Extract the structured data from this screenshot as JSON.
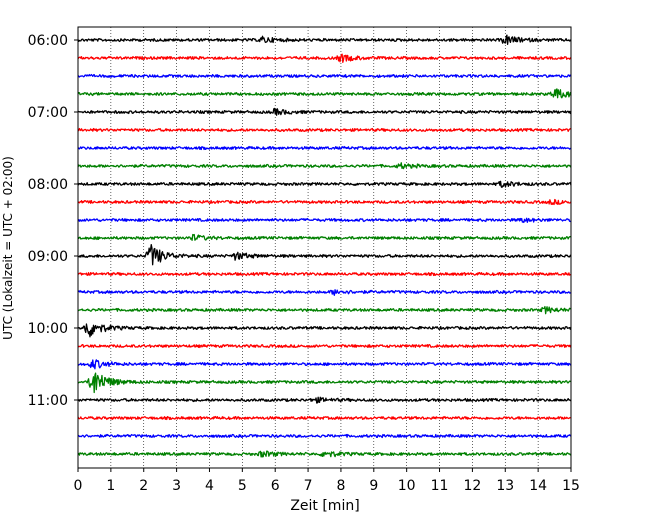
{
  "chart_data": {
    "type": "line",
    "xlabel": "Zeit  [min]",
    "ylabel": "UTC (Lokalzeit = UTC + 02:00)",
    "xlim": [
      0,
      15
    ],
    "x_ticks": [
      "0",
      "1",
      "2",
      "3",
      "4",
      "5",
      "6",
      "7",
      "8",
      "9",
      "10",
      "11",
      "12",
      "13",
      "14",
      "15"
    ],
    "y_ticks": [
      {
        "row": 0,
        "label": "06:00"
      },
      {
        "row": 4,
        "label": "07:00"
      },
      {
        "row": 8,
        "label": "08:00"
      },
      {
        "row": 12,
        "label": "09:00"
      },
      {
        "row": 16,
        "label": "10:00"
      },
      {
        "row": 20,
        "label": "11:00"
      }
    ],
    "grid": "vertical dotted",
    "trace_colors": [
      "#000000",
      "#ff0000",
      "#0000ff",
      "#008000"
    ],
    "series": [
      {
        "start": "06:00",
        "color": "#000000",
        "events": [
          {
            "t": 13.0,
            "amp": 0.5
          },
          {
            "t": 5.6,
            "amp": 0.3
          }
        ]
      },
      {
        "start": "06:15",
        "color": "#ff0000",
        "events": [
          {
            "t": 8.0,
            "amp": 0.4
          }
        ]
      },
      {
        "start": "06:30",
        "color": "#0000ff",
        "events": []
      },
      {
        "start": "06:45",
        "color": "#008000",
        "events": [
          {
            "t": 14.5,
            "amp": 0.6
          }
        ]
      },
      {
        "start": "07:00",
        "color": "#000000",
        "events": [
          {
            "t": 6.0,
            "amp": 0.3
          }
        ]
      },
      {
        "start": "07:15",
        "color": "#ff0000",
        "events": []
      },
      {
        "start": "07:30",
        "color": "#0000ff",
        "events": []
      },
      {
        "start": "07:45",
        "color": "#008000",
        "events": [
          {
            "t": 9.8,
            "amp": 0.25
          }
        ]
      },
      {
        "start": "08:00",
        "color": "#000000",
        "events": [
          {
            "t": 12.9,
            "amp": 0.3
          }
        ]
      },
      {
        "start": "08:15",
        "color": "#ff0000",
        "events": [
          {
            "t": 14.4,
            "amp": 0.2
          }
        ]
      },
      {
        "start": "08:30",
        "color": "#0000ff",
        "events": [
          {
            "t": 13.5,
            "amp": 0.2
          }
        ]
      },
      {
        "start": "08:45",
        "color": "#008000",
        "events": [
          {
            "t": 3.5,
            "amp": 0.3
          }
        ]
      },
      {
        "start": "09:00",
        "color": "#000000",
        "events": [
          {
            "t": 2.2,
            "amp": 1.3
          },
          {
            "t": 4.8,
            "amp": 0.4
          }
        ]
      },
      {
        "start": "09:15",
        "color": "#ff0000",
        "events": []
      },
      {
        "start": "09:30",
        "color": "#0000ff",
        "events": [
          {
            "t": 7.8,
            "amp": 0.25
          }
        ]
      },
      {
        "start": "09:45",
        "color": "#008000",
        "events": [
          {
            "t": 14.2,
            "amp": 0.3
          }
        ]
      },
      {
        "start": "10:00",
        "color": "#000000",
        "events": [
          {
            "t": 0.3,
            "amp": 1.1
          }
        ]
      },
      {
        "start": "10:15",
        "color": "#ff0000",
        "events": []
      },
      {
        "start": "10:30",
        "color": "#0000ff",
        "events": [
          {
            "t": 0.45,
            "amp": 0.5
          }
        ]
      },
      {
        "start": "10:45",
        "color": "#008000",
        "events": [
          {
            "t": 0.45,
            "amp": 1.6
          }
        ]
      },
      {
        "start": "11:00",
        "color": "#000000",
        "events": [
          {
            "t": 7.2,
            "amp": 0.25
          }
        ]
      },
      {
        "start": "11:15",
        "color": "#ff0000",
        "events": []
      },
      {
        "start": "11:30",
        "color": "#0000ff",
        "events": []
      },
      {
        "start": "11:45",
        "color": "#008000",
        "events": [
          {
            "t": 5.6,
            "amp": 0.3
          },
          {
            "t": 7.5,
            "amp": 0.35
          }
        ]
      }
    ]
  }
}
